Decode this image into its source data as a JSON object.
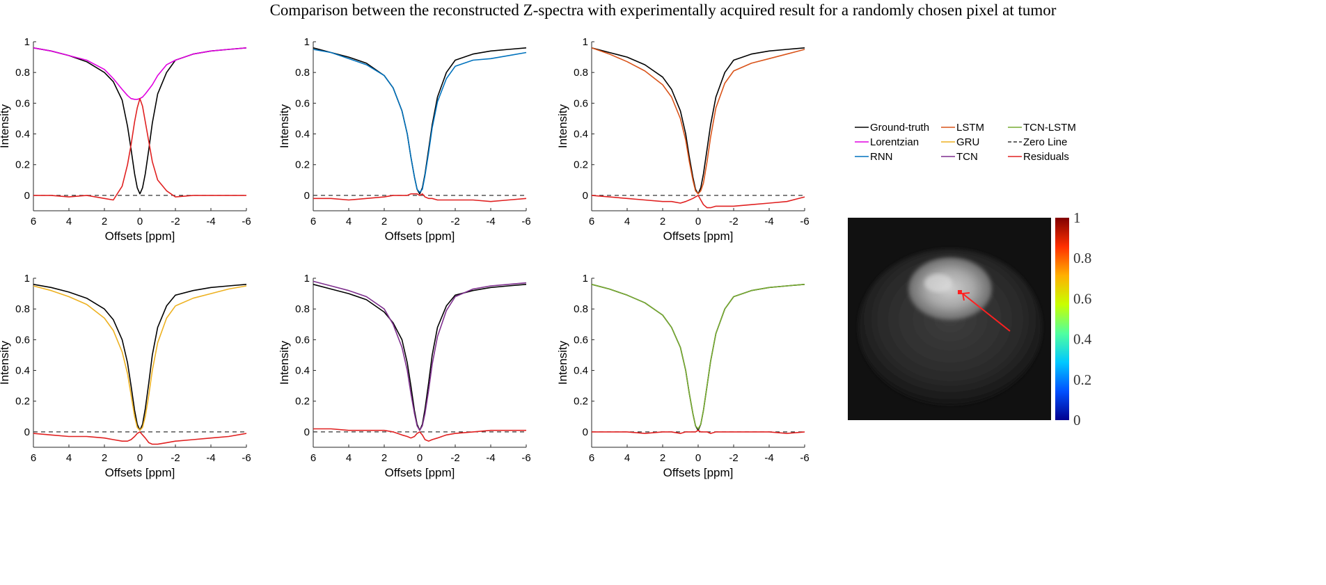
{
  "figure_title": "Comparison between the reconstructed Z-spectra with experimentally acquired result for a randomly chosen pixel at tumor",
  "colors": {
    "Ground-truth": "#000000",
    "Lorentzian": "#e000e0",
    "RNN": "#0072BD",
    "LSTM": "#D95319",
    "GRU": "#EDB120",
    "TCN": "#7E2F8E",
    "TCN-LSTM": "#77AC30",
    "Zero Line": "#333333",
    "Residuals": "#e02020"
  },
  "legend": {
    "entries": [
      {
        "label": "Ground-truth",
        "style": "solid"
      },
      {
        "label": "LSTM",
        "style": "solid"
      },
      {
        "label": "TCN-LSTM",
        "style": "solid"
      },
      {
        "label": "Lorentzian",
        "style": "solid"
      },
      {
        "label": "GRU",
        "style": "solid"
      },
      {
        "label": "Zero Line",
        "style": "dashed"
      },
      {
        "label": "RNN",
        "style": "solid"
      },
      {
        "label": "TCN",
        "style": "solid"
      },
      {
        "label": "Residuals",
        "style": "solid"
      }
    ]
  },
  "chart_data": [
    {
      "type": "line",
      "panel": 1,
      "xlabel": "Offsets [ppm]",
      "ylabel": "Intensity",
      "xlim": [
        6,
        -6
      ],
      "ylim": [
        -0.1,
        1
      ],
      "x_reversed": true,
      "grid": false,
      "xticks": [
        "6",
        "4",
        "2",
        "0",
        "-2",
        "-4",
        "-6"
      ],
      "yticks": [
        "0",
        "0.2",
        "0.4",
        "0.6",
        "0.8",
        "1"
      ],
      "x": [
        6,
        5,
        4,
        3,
        2,
        1.5,
        1,
        0.7,
        0.5,
        0.3,
        0.15,
        0,
        -0.15,
        -0.3,
        -0.5,
        -0.7,
        -1,
        -1.5,
        -2,
        -3,
        -4,
        -5,
        -6
      ],
      "series": [
        {
          "name": "Ground-truth",
          "values": [
            0.96,
            0.94,
            0.91,
            0.87,
            0.8,
            0.74,
            0.62,
            0.45,
            0.3,
            0.14,
            0.05,
            0.01,
            0.05,
            0.14,
            0.3,
            0.47,
            0.66,
            0.8,
            0.88,
            0.92,
            0.94,
            0.95,
            0.96
          ]
        },
        {
          "name": "Lorentzian",
          "values": [
            0.96,
            0.94,
            0.91,
            0.88,
            0.82,
            0.76,
            0.69,
            0.65,
            0.63,
            0.625,
            0.625,
            0.63,
            0.64,
            0.66,
            0.69,
            0.72,
            0.78,
            0.85,
            0.88,
            0.92,
            0.94,
            0.95,
            0.96
          ]
        },
        {
          "name": "Residuals",
          "values": [
            0,
            0,
            -0.01,
            0,
            -0.02,
            -0.03,
            0.06,
            0.2,
            0.33,
            0.48,
            0.57,
            0.63,
            0.58,
            0.48,
            0.35,
            0.22,
            0.1,
            0.03,
            -0.01,
            0,
            0,
            0,
            0
          ]
        },
        {
          "name": "Zero Line",
          "values": [
            0,
            0,
            0,
            0,
            0,
            0,
            0,
            0,
            0,
            0,
            0,
            0,
            0,
            0,
            0,
            0,
            0,
            0,
            0,
            0,
            0,
            0,
            0
          ]
        }
      ]
    },
    {
      "type": "line",
      "panel": 2,
      "xlabel": "Offsets [ppm]",
      "ylabel": "Intensity",
      "xlim": [
        6,
        -6
      ],
      "ylim": [
        -0.1,
        1
      ],
      "x_reversed": true,
      "grid": false,
      "xticks": [
        "6",
        "4",
        "2",
        "0",
        "-2",
        "-4",
        "-6"
      ],
      "yticks": [
        "0",
        "0.2",
        "0.4",
        "0.6",
        "0.8",
        "1"
      ],
      "x": [
        6,
        5,
        4,
        3,
        2,
        1.5,
        1,
        0.7,
        0.5,
        0.3,
        0.15,
        0,
        -0.15,
        -0.3,
        -0.5,
        -0.7,
        -1,
        -1.5,
        -2,
        -3,
        -4,
        -5,
        -6
      ],
      "series": [
        {
          "name": "Ground-truth",
          "values": [
            0.96,
            0.93,
            0.9,
            0.86,
            0.78,
            0.7,
            0.55,
            0.4,
            0.25,
            0.12,
            0.04,
            0.01,
            0.05,
            0.14,
            0.3,
            0.46,
            0.64,
            0.8,
            0.88,
            0.92,
            0.94,
            0.95,
            0.96
          ]
        },
        {
          "name": "RNN",
          "values": [
            0.95,
            0.93,
            0.89,
            0.85,
            0.78,
            0.7,
            0.55,
            0.4,
            0.25,
            0.12,
            0.04,
            0.02,
            0.04,
            0.13,
            0.28,
            0.44,
            0.61,
            0.76,
            0.84,
            0.88,
            0.89,
            0.91,
            0.93
          ]
        },
        {
          "name": "Residuals",
          "values": [
            -0.02,
            -0.02,
            -0.03,
            -0.02,
            -0.01,
            0,
            0,
            0,
            0.01,
            0.01,
            0.01,
            0,
            0.01,
            -0.01,
            -0.02,
            -0.02,
            -0.03,
            -0.03,
            -0.03,
            -0.03,
            -0.04,
            -0.03,
            -0.02
          ]
        },
        {
          "name": "Zero Line",
          "values": [
            0,
            0,
            0,
            0,
            0,
            0,
            0,
            0,
            0,
            0,
            0,
            0,
            0,
            0,
            0,
            0,
            0,
            0,
            0,
            0,
            0,
            0,
            0
          ]
        }
      ]
    },
    {
      "type": "line",
      "panel": 3,
      "xlabel": "Offsets [ppm]",
      "ylabel": "Intensity",
      "xlim": [
        6,
        -6
      ],
      "ylim": [
        -0.1,
        1
      ],
      "x_reversed": true,
      "grid": false,
      "xticks": [
        "6",
        "4",
        "2",
        "0",
        "-2",
        "-4",
        "-6"
      ],
      "yticks": [
        "0",
        "0.2",
        "0.4",
        "0.6",
        "0.8",
        "1"
      ],
      "x": [
        6,
        5,
        4,
        3,
        2,
        1.5,
        1,
        0.7,
        0.5,
        0.3,
        0.15,
        0,
        -0.15,
        -0.3,
        -0.5,
        -0.7,
        -1,
        -1.5,
        -2,
        -3,
        -4,
        -5,
        -6
      ],
      "series": [
        {
          "name": "Ground-truth",
          "values": [
            0.96,
            0.93,
            0.9,
            0.85,
            0.77,
            0.69,
            0.55,
            0.4,
            0.25,
            0.12,
            0.04,
            0.01,
            0.05,
            0.14,
            0.3,
            0.46,
            0.64,
            0.8,
            0.88,
            0.92,
            0.94,
            0.95,
            0.96
          ]
        },
        {
          "name": "LSTM",
          "values": [
            0.96,
            0.92,
            0.87,
            0.81,
            0.72,
            0.64,
            0.5,
            0.36,
            0.22,
            0.1,
            0.03,
            0.01,
            0.03,
            0.08,
            0.22,
            0.38,
            0.57,
            0.73,
            0.81,
            0.86,
            0.89,
            0.92,
            0.95
          ]
        },
        {
          "name": "Residuals",
          "values": [
            0,
            -0.01,
            -0.02,
            -0.03,
            -0.04,
            -0.04,
            -0.05,
            -0.04,
            -0.03,
            -0.02,
            -0.01,
            0,
            -0.03,
            -0.06,
            -0.08,
            -0.08,
            -0.07,
            -0.07,
            -0.07,
            -0.06,
            -0.05,
            -0.04,
            -0.01
          ]
        },
        {
          "name": "Zero Line",
          "values": [
            0,
            0,
            0,
            0,
            0,
            0,
            0,
            0,
            0,
            0,
            0,
            0,
            0,
            0,
            0,
            0,
            0,
            0,
            0,
            0,
            0,
            0,
            0
          ]
        }
      ]
    },
    {
      "type": "line",
      "panel": 4,
      "xlabel": "Offsets [ppm]",
      "ylabel": "Intensity",
      "xlim": [
        6,
        -6
      ],
      "ylim": [
        -0.1,
        1
      ],
      "x_reversed": true,
      "grid": false,
      "xticks": [
        "6",
        "4",
        "2",
        "0",
        "-2",
        "-4",
        "-6"
      ],
      "yticks": [
        "0",
        "0.2",
        "0.4",
        "0.6",
        "0.8",
        "1"
      ],
      "x": [
        6,
        5,
        4,
        3,
        2,
        1.5,
        1,
        0.7,
        0.5,
        0.3,
        0.15,
        0,
        -0.15,
        -0.3,
        -0.5,
        -0.7,
        -1,
        -1.5,
        -2,
        -3,
        -4,
        -5,
        -6
      ],
      "series": [
        {
          "name": "Ground-truth",
          "values": [
            0.96,
            0.94,
            0.91,
            0.87,
            0.8,
            0.73,
            0.6,
            0.45,
            0.3,
            0.14,
            0.05,
            0.01,
            0.05,
            0.15,
            0.32,
            0.5,
            0.68,
            0.82,
            0.89,
            0.92,
            0.94,
            0.95,
            0.96
          ]
        },
        {
          "name": "GRU",
          "values": [
            0.95,
            0.92,
            0.88,
            0.83,
            0.74,
            0.66,
            0.52,
            0.38,
            0.24,
            0.1,
            0.03,
            0.01,
            0.03,
            0.1,
            0.24,
            0.4,
            0.58,
            0.74,
            0.82,
            0.87,
            0.9,
            0.93,
            0.95
          ]
        },
        {
          "name": "Residuals",
          "values": [
            -0.01,
            -0.02,
            -0.03,
            -0.03,
            -0.04,
            -0.05,
            -0.06,
            -0.06,
            -0.05,
            -0.03,
            -0.01,
            0,
            -0.02,
            -0.04,
            -0.07,
            -0.08,
            -0.08,
            -0.07,
            -0.06,
            -0.05,
            -0.04,
            -0.03,
            -0.01
          ]
        },
        {
          "name": "Zero Line",
          "values": [
            0,
            0,
            0,
            0,
            0,
            0,
            0,
            0,
            0,
            0,
            0,
            0,
            0,
            0,
            0,
            0,
            0,
            0,
            0,
            0,
            0,
            0,
            0
          ]
        }
      ]
    },
    {
      "type": "line",
      "panel": 5,
      "xlabel": "Offsets [ppm]",
      "ylabel": "Intensity",
      "xlim": [
        6,
        -6
      ],
      "ylim": [
        -0.1,
        1
      ],
      "x_reversed": true,
      "grid": false,
      "xticks": [
        "6",
        "4",
        "2",
        "0",
        "-2",
        "-4",
        "-6"
      ],
      "yticks": [
        "0",
        "0.2",
        "0.4",
        "0.6",
        "0.8",
        "1"
      ],
      "x": [
        6,
        5,
        4,
        3,
        2,
        1.5,
        1,
        0.7,
        0.5,
        0.3,
        0.15,
        0,
        -0.15,
        -0.3,
        -0.5,
        -0.7,
        -1,
        -1.5,
        -2,
        -3,
        -4,
        -5,
        -6
      ],
      "series": [
        {
          "name": "Ground-truth",
          "values": [
            0.96,
            0.93,
            0.9,
            0.86,
            0.78,
            0.71,
            0.6,
            0.45,
            0.3,
            0.14,
            0.05,
            0.01,
            0.05,
            0.15,
            0.32,
            0.5,
            0.68,
            0.82,
            0.89,
            0.92,
            0.94,
            0.95,
            0.96
          ]
        },
        {
          "name": "TCN",
          "values": [
            0.98,
            0.95,
            0.92,
            0.88,
            0.8,
            0.7,
            0.55,
            0.4,
            0.25,
            0.12,
            0.04,
            0.01,
            0.04,
            0.12,
            0.27,
            0.44,
            0.62,
            0.79,
            0.88,
            0.93,
            0.95,
            0.96,
            0.97
          ]
        },
        {
          "name": "Residuals",
          "values": [
            0.02,
            0.02,
            0.01,
            0.01,
            0.01,
            0,
            -0.02,
            -0.03,
            -0.04,
            -0.03,
            -0.01,
            0,
            -0.02,
            -0.05,
            -0.06,
            -0.05,
            -0.04,
            -0.02,
            -0.01,
            0,
            0.01,
            0.01,
            0.01
          ]
        },
        {
          "name": "Zero Line",
          "values": [
            0,
            0,
            0,
            0,
            0,
            0,
            0,
            0,
            0,
            0,
            0,
            0,
            0,
            0,
            0,
            0,
            0,
            0,
            0,
            0,
            0,
            0,
            0
          ]
        }
      ]
    },
    {
      "type": "line",
      "panel": 6,
      "xlabel": "Offsets [ppm]",
      "ylabel": "Intensity",
      "xlim": [
        6,
        -6
      ],
      "ylim": [
        -0.1,
        1
      ],
      "x_reversed": true,
      "grid": false,
      "xticks": [
        "6",
        "4",
        "2",
        "0",
        "-2",
        "-4",
        "-6"
      ],
      "yticks": [
        "0",
        "0.2",
        "0.4",
        "0.6",
        "0.8",
        "1"
      ],
      "x": [
        6,
        5,
        4,
        3,
        2,
        1.5,
        1,
        0.7,
        0.5,
        0.3,
        0.15,
        0,
        -0.15,
        -0.3,
        -0.5,
        -0.7,
        -1,
        -1.5,
        -2,
        -3,
        -4,
        -5,
        -6
      ],
      "series": [
        {
          "name": "Ground-truth",
          "values": [
            0.96,
            0.93,
            0.89,
            0.84,
            0.76,
            0.68,
            0.55,
            0.4,
            0.25,
            0.12,
            0.04,
            0.01,
            0.05,
            0.14,
            0.3,
            0.46,
            0.64,
            0.8,
            0.88,
            0.92,
            0.94,
            0.95,
            0.96
          ]
        },
        {
          "name": "TCN-LSTM",
          "values": [
            0.96,
            0.93,
            0.89,
            0.84,
            0.76,
            0.68,
            0.55,
            0.4,
            0.25,
            0.12,
            0.04,
            0.02,
            0.05,
            0.14,
            0.3,
            0.46,
            0.64,
            0.8,
            0.88,
            0.92,
            0.94,
            0.95,
            0.96
          ]
        },
        {
          "name": "Residuals",
          "values": [
            0,
            0,
            0,
            -0.01,
            0,
            0,
            -0.01,
            0,
            0,
            0,
            0,
            0.01,
            0,
            0,
            0,
            -0.01,
            0,
            0,
            0,
            0,
            0,
            -0.01,
            0
          ]
        },
        {
          "name": "Zero Line",
          "values": [
            0,
            0,
            0,
            0,
            0,
            0,
            0,
            0,
            0,
            0,
            0,
            0,
            0,
            0,
            0,
            0,
            0,
            0,
            0,
            0,
            0,
            0,
            0
          ]
        }
      ]
    },
    {
      "type": "heatmap",
      "panel": 7,
      "colorbar_ticks": [
        "0",
        "0.2",
        "0.4",
        "0.6",
        "0.8",
        "1"
      ],
      "clim": [
        0,
        1
      ],
      "colormap": [
        "#00008f",
        "#0050ff",
        "#00c8ff",
        "#50ff9f",
        "#c8ff00",
        "#ffb000",
        "#ff3000",
        "#800000"
      ],
      "image": "grayscale MRI slice of a mouse brain with a red-marked pixel in the tumor region and a red arrow pointing to it"
    }
  ]
}
